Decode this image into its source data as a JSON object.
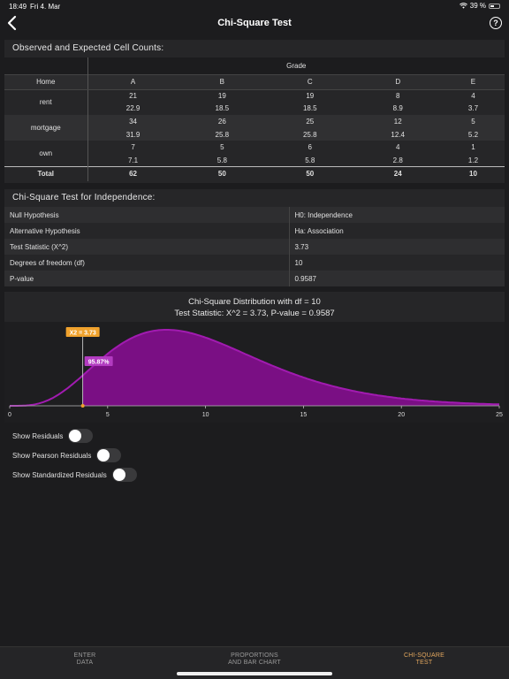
{
  "status": {
    "time": "18:49",
    "date": "Fri 4. Mar",
    "battery": "39 %"
  },
  "nav": {
    "title": "Chi-Square Test",
    "help": "?"
  },
  "observed": {
    "title": "Observed and Expected Cell Counts:",
    "group_label": "Grade",
    "row_var": "Home",
    "columns": [
      "A",
      "B",
      "C",
      "D",
      "E"
    ],
    "rows": [
      {
        "label": "rent",
        "observed": [
          "21",
          "19",
          "19",
          "8",
          "4"
        ],
        "expected": [
          "22.9",
          "18.5",
          "18.5",
          "8.9",
          "3.7"
        ]
      },
      {
        "label": "mortgage",
        "observed": [
          "34",
          "26",
          "25",
          "12",
          "5"
        ],
        "expected": [
          "31.9",
          "25.8",
          "25.8",
          "12.4",
          "5.2"
        ]
      },
      {
        "label": "own",
        "observed": [
          "7",
          "5",
          "6",
          "4",
          "1"
        ],
        "expected": [
          "7.1",
          "5.8",
          "5.8",
          "2.8",
          "1.2"
        ]
      }
    ],
    "total_label": "Total",
    "totals": [
      "62",
      "50",
      "50",
      "24",
      "10"
    ]
  },
  "test": {
    "title": "Chi-Square Test for Independence:",
    "rows": [
      {
        "label": "Null Hypothesis",
        "value": "H0: Independence"
      },
      {
        "label": "Alternative Hypothesis",
        "value": "Ha: Association"
      },
      {
        "label": "Test Statistic (X^2)",
        "value": "3.73"
      },
      {
        "label": "Degrees of freedom (df)",
        "value": "10"
      },
      {
        "label": "P-value",
        "value": "0.9587"
      }
    ]
  },
  "chart_data": {
    "type": "area",
    "title": "Chi-Square Distribution with df = 10",
    "subtitle": "Test Statistic: X^2 = 3.73, P-value = 0.9587",
    "df": 10,
    "statistic": 3.73,
    "marker_label": "X2 = 3.73",
    "area_label": "95.87%",
    "xlim": [
      0,
      25
    ],
    "xticks": [
      0,
      5,
      10,
      15,
      20,
      25
    ],
    "colors": {
      "fill": "#7a0f84",
      "line": "#a11bb0",
      "marker": "#f0a22d",
      "area_label": "#b23bc0"
    }
  },
  "toggles": [
    {
      "label": "Show Residuals",
      "on": false
    },
    {
      "label": "Show Pearson Residuals",
      "on": false
    },
    {
      "label": "Show Standardized Residuals",
      "on": false
    }
  ],
  "tabs": [
    {
      "line1": "ENTER",
      "line2": "DATA",
      "active": false
    },
    {
      "line1": "PROPORTIONS",
      "line2": "AND BAR CHART",
      "active": false
    },
    {
      "line1": "CHI-SQUARE",
      "line2": "TEST",
      "active": true
    }
  ],
  "accent_color": "#e3a75e"
}
